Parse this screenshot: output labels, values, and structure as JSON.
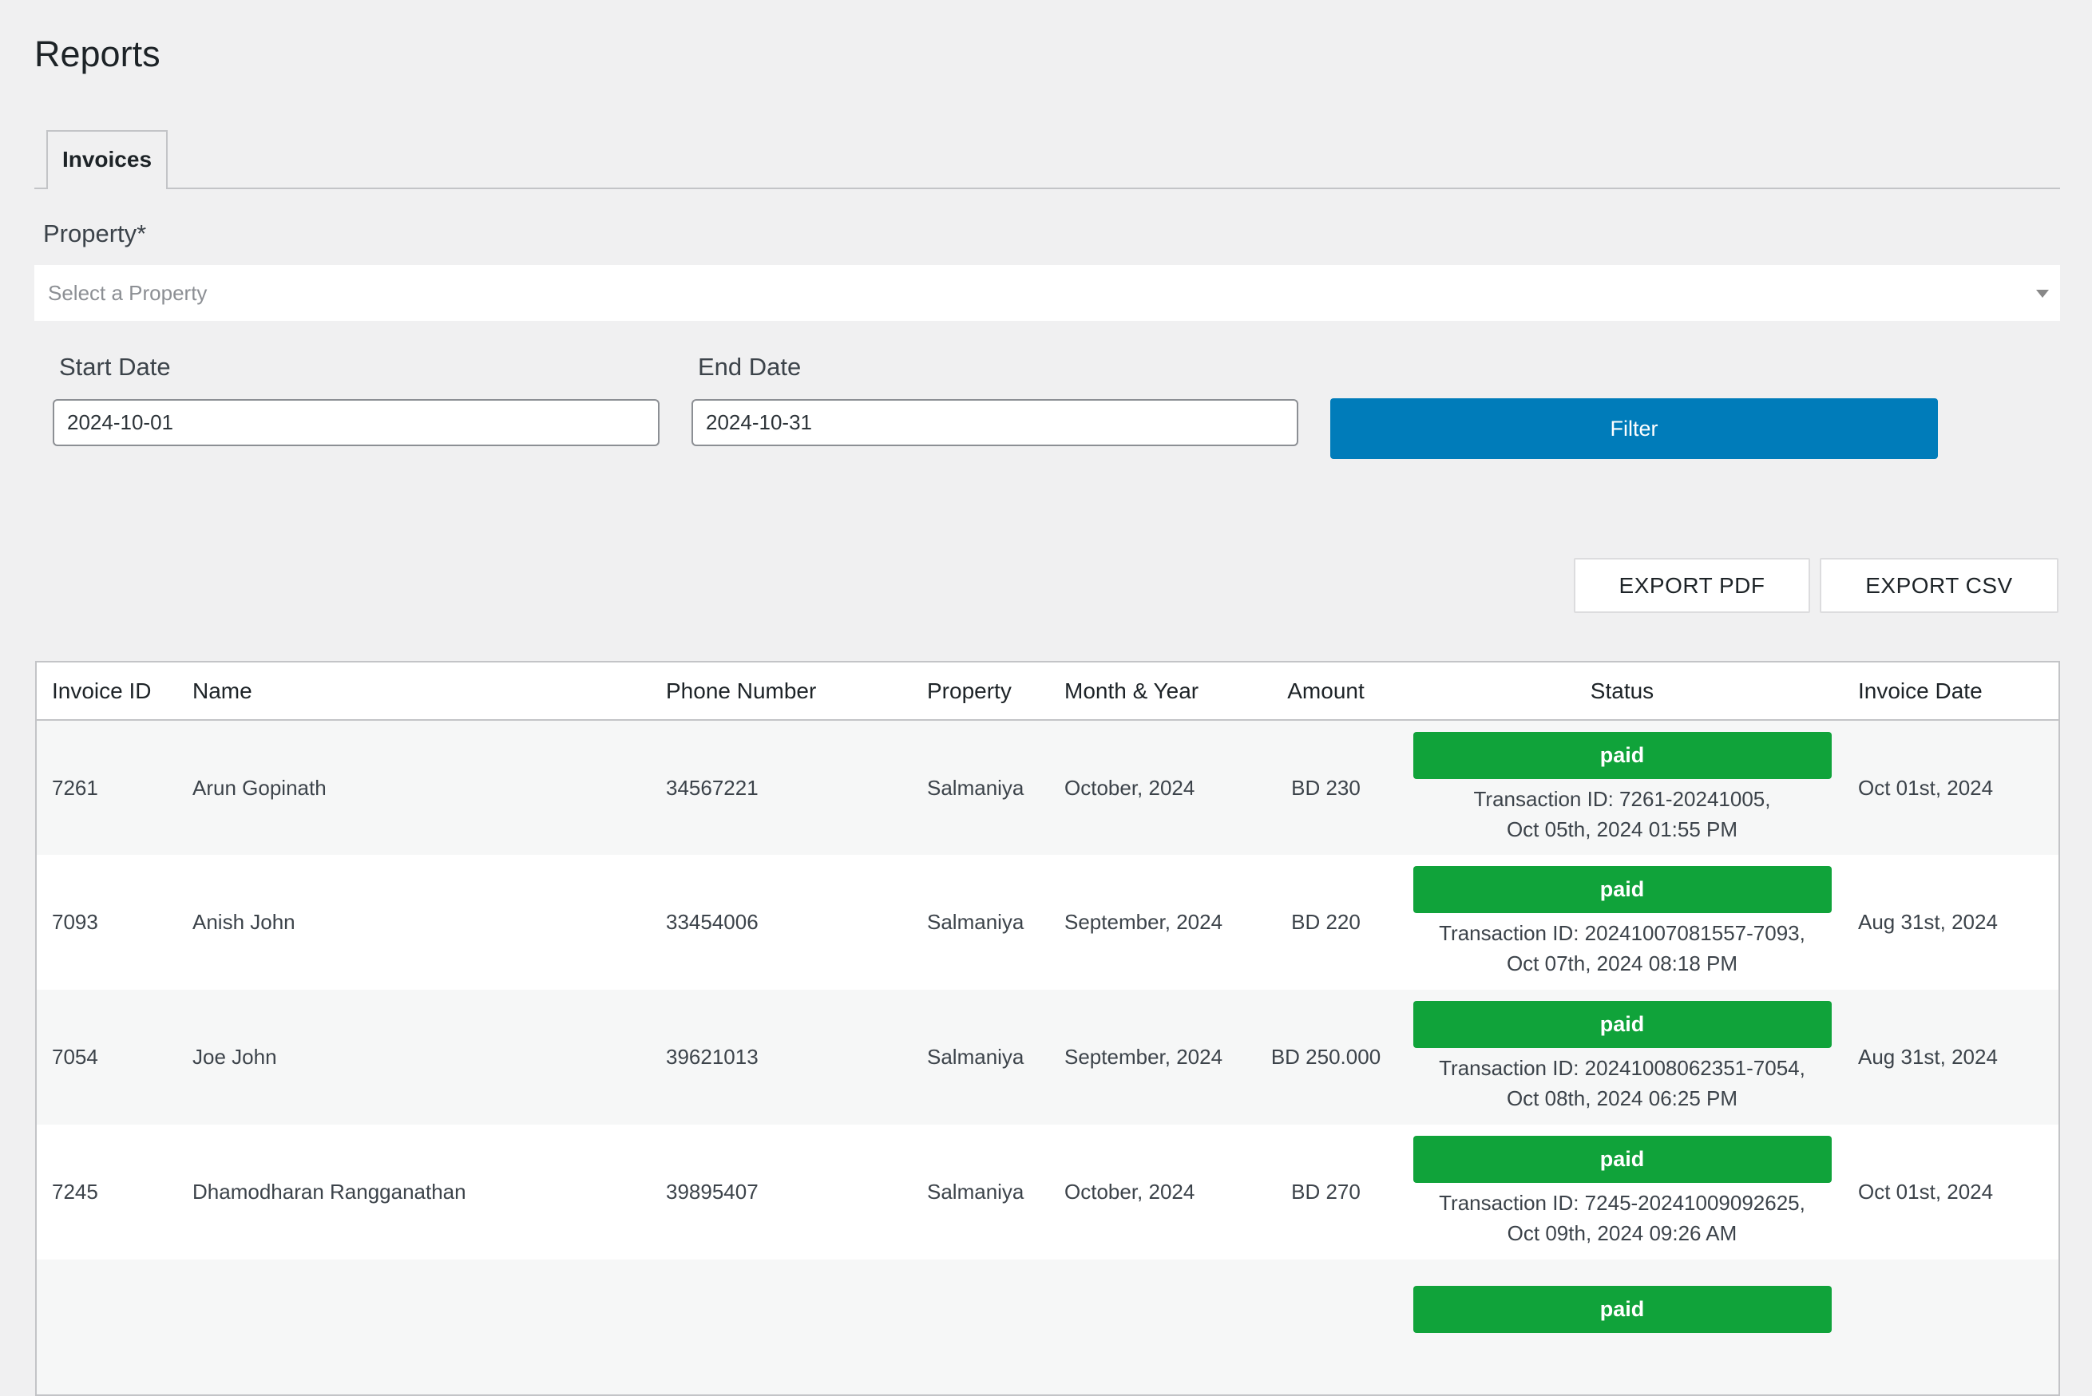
{
  "page": {
    "title": "Reports"
  },
  "tabs": [
    {
      "label": "Invoices"
    }
  ],
  "filters": {
    "property_label": "Property*",
    "property_placeholder": "Select a Property",
    "start_label": "Start Date",
    "start_value": "2024-10-01",
    "end_label": "End Date",
    "end_value": "2024-10-31",
    "filter_label": "Filter"
  },
  "export": {
    "pdf_label": "EXPORT PDF",
    "csv_label": "EXPORT CSV"
  },
  "table": {
    "headers": {
      "invoice_id": "Invoice ID",
      "name": "Name",
      "phone": "Phone Number",
      "property": "Property",
      "month_year": "Month & Year",
      "amount": "Amount",
      "status": "Status",
      "invoice_date": "Invoice Date"
    },
    "rows": [
      {
        "invoice_id": "7261",
        "name": "Arun Gopinath",
        "phone": "34567221",
        "property": "Salmaniya",
        "month_year": "October, 2024",
        "amount": "BD 230",
        "status": "paid",
        "transaction": "Transaction ID: 7261-20241005,",
        "transaction_time": "Oct 05th, 2024 01:55 PM",
        "invoice_date": "Oct 01st, 2024"
      },
      {
        "invoice_id": "7093",
        "name": "Anish John",
        "phone": "33454006",
        "property": "Salmaniya",
        "month_year": "September, 2024",
        "amount": "BD 220",
        "status": "paid",
        "transaction": "Transaction ID: 20241007081557-7093,",
        "transaction_time": "Oct 07th, 2024 08:18 PM",
        "invoice_date": "Aug 31st, 2024"
      },
      {
        "invoice_id": "7054",
        "name": "Joe John",
        "phone": "39621013",
        "property": "Salmaniya",
        "month_year": "September, 2024",
        "amount": "BD 250.000",
        "status": "paid",
        "transaction": "Transaction ID: 20241008062351-7054,",
        "transaction_time": "Oct 08th, 2024 06:25 PM",
        "invoice_date": "Aug 31st, 2024"
      },
      {
        "invoice_id": "7245",
        "name": "Dhamodharan Rangganathan",
        "phone": "39895407",
        "property": "Salmaniya",
        "month_year": "October, 2024",
        "amount": "BD 270",
        "status": "paid",
        "transaction": "Transaction ID: 7245-20241009092625,",
        "transaction_time": "Oct 09th, 2024 09:26 AM",
        "invoice_date": "Oct 01st, 2024"
      },
      {
        "invoice_id": "",
        "name": "",
        "phone": "",
        "property": "",
        "month_year": "",
        "amount": "",
        "status": "paid",
        "transaction": "",
        "transaction_time": "",
        "invoice_date": ""
      }
    ]
  },
  "colors": {
    "background": "#f0f0f1",
    "primary_button": "#007cba",
    "status_paid": "#10a33a"
  }
}
